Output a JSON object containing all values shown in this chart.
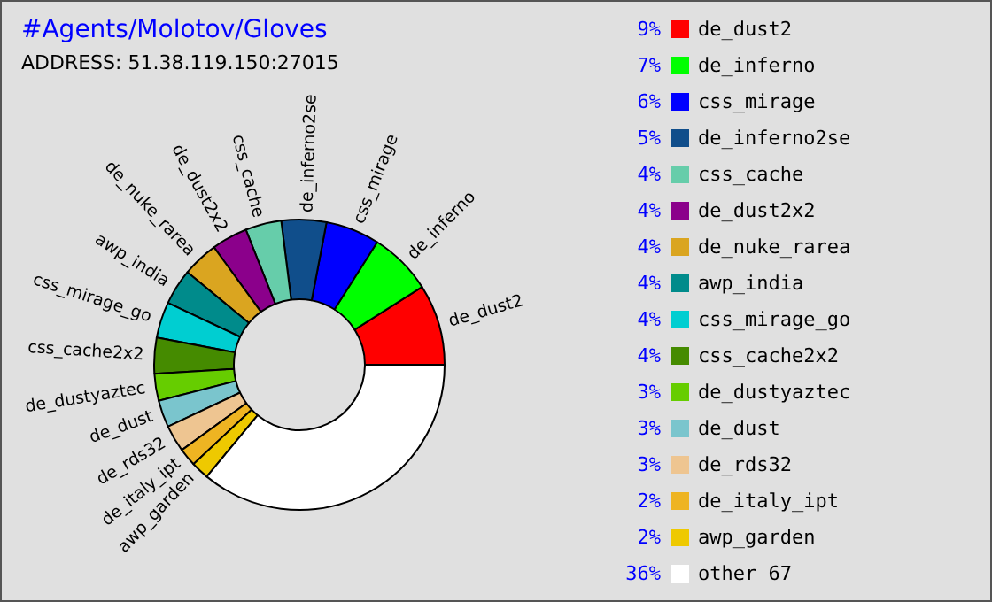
{
  "chart_data": {
    "type": "donut",
    "title": "#Agents/Molotov/Gloves",
    "subtitle": "ADDRESS: 51.38.119.150:27015",
    "categories": [
      "de_dust2",
      "de_inferno",
      "css_mirage",
      "de_inferno2se",
      "css_cache",
      "de_dust2x2",
      "de_nuke_rarea",
      "awp_india",
      "css_mirage_go",
      "css_cache2x2",
      "de_dustyaztec",
      "de_dust",
      "de_rds32",
      "de_italy_ipt",
      "awp_garden",
      "other 67"
    ],
    "values": [
      9,
      7,
      6,
      5,
      4,
      4,
      4,
      4,
      4,
      4,
      3,
      3,
      3,
      2,
      2,
      36
    ],
    "value_labels": [
      "9%",
      "7%",
      "6%",
      "5%",
      "4%",
      "4%",
      "4%",
      "4%",
      "4%",
      "4%",
      "3%",
      "3%",
      "3%",
      "2%",
      "2%",
      "36%"
    ],
    "colors": [
      "#ff0000",
      "#00ff00",
      "#0000ff",
      "#104e8b",
      "#66cdaa",
      "#8b008b",
      "#daa520",
      "#008b8b",
      "#00ced1",
      "#458b00",
      "#66cd00",
      "#7ac5cd",
      "#eec591",
      "#eeb422",
      "#eec900",
      "#ffffff"
    ],
    "legend": "right"
  }
}
